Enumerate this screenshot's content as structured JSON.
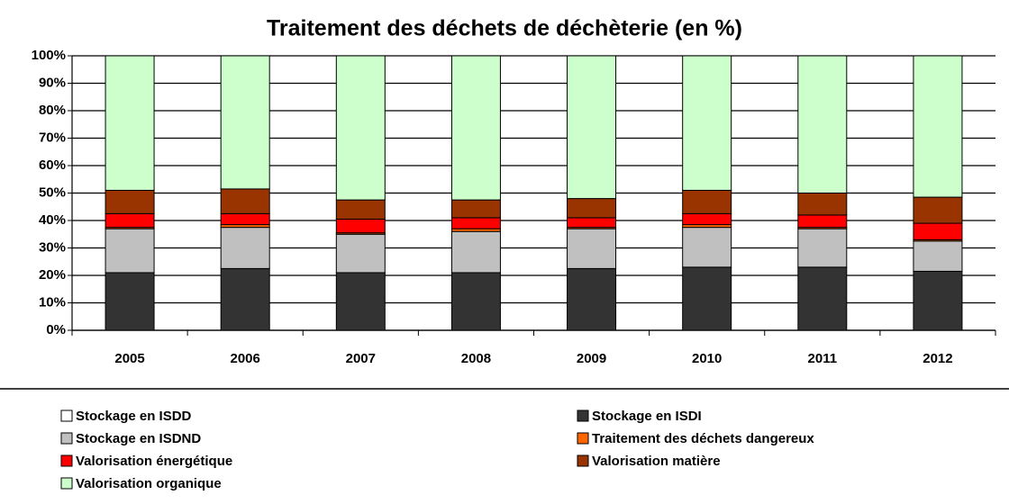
{
  "chart_data": {
    "type": "stacked_bar",
    "title": "Traitement des déchets de déchèterie (en %)",
    "categories": [
      "2005",
      "2006",
      "2007",
      "2008",
      "2009",
      "2010",
      "2011",
      "2012"
    ],
    "series": [
      {
        "name": "Stockage en ISDD",
        "color": "#ffffff",
        "values": [
          0,
          0,
          0,
          0,
          0,
          0,
          0,
          0
        ]
      },
      {
        "name": "Stockage en ISDI",
        "color": "#333333",
        "values": [
          21,
          22.5,
          21,
          21,
          22.5,
          23,
          23,
          21.5
        ]
      },
      {
        "name": "Stockage en ISDND",
        "color": "#c0c0c0",
        "values": [
          16,
          15,
          14,
          15,
          14.5,
          14.5,
          14,
          11
        ]
      },
      {
        "name": "Traitement des déchets dangereux",
        "color": "#ff6600",
        "values": [
          0.5,
          1,
          0.5,
          1,
          0.5,
          1,
          0.5,
          0.5
        ]
      },
      {
        "name": "Valorisation énergétique",
        "color": "#ff0000",
        "values": [
          5,
          4,
          5,
          4,
          3.5,
          4,
          4.5,
          6
        ]
      },
      {
        "name": "Valorisation matière",
        "color": "#993300",
        "values": [
          8.5,
          9,
          7,
          6.5,
          7,
          8.5,
          8,
          9.5
        ]
      },
      {
        "name": "Valorisation organique",
        "color": "#ccffcc",
        "values": [
          49,
          48.5,
          52.5,
          52.5,
          52,
          49,
          50,
          51.5
        ]
      }
    ],
    "ylim": [
      0,
      100
    ],
    "yticks": [
      {
        "value": 0,
        "label": "0%"
      },
      {
        "value": 10,
        "label": "10%"
      },
      {
        "value": 20,
        "label": "20%"
      },
      {
        "value": 30,
        "label": "30%"
      },
      {
        "value": 40,
        "label": "40%"
      },
      {
        "value": 50,
        "label": "50%"
      },
      {
        "value": 60,
        "label": "60%"
      },
      {
        "value": 70,
        "label": "70%"
      },
      {
        "value": 80,
        "label": "80%"
      },
      {
        "value": 90,
        "label": "90%"
      },
      {
        "value": 100,
        "label": "100%"
      }
    ],
    "grid": true,
    "legend": "bottom"
  }
}
